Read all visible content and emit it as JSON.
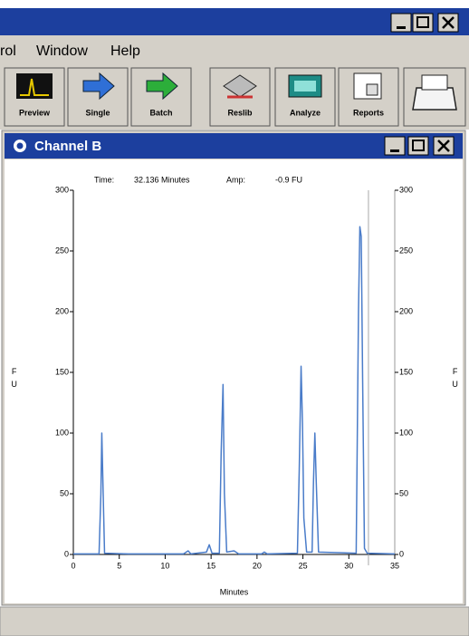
{
  "menu": [
    "rol",
    "Window",
    "Help"
  ],
  "toolbar": [
    "Preview",
    "Single",
    "Batch",
    "Reslib",
    "Analyze",
    "Reports"
  ],
  "window": {
    "title": "Channel B",
    "readout": [
      "Time:",
      "32.136 Minutes",
      "Amp:",
      "-0.9 FU"
    ]
  },
  "chart_data": {
    "type": "line",
    "x": [
      0,
      2.8,
      3.0,
      3.1,
      3.25,
      3.4,
      6,
      12,
      12.5,
      12.8,
      14.5,
      14.8,
      15.1,
      15.9,
      16.1,
      16.3,
      16.45,
      16.7,
      17.5,
      18,
      20.5,
      20.8,
      21.1,
      24.4,
      24.6,
      24.8,
      24.95,
      25.1,
      25.4,
      26.0,
      26.15,
      26.3,
      26.45,
      26.7,
      30.8,
      31.05,
      31.2,
      31.35,
      31.5,
      31.7,
      32.0,
      35
    ],
    "series": [
      {
        "name": "Channel B",
        "color": "#4a7cc9",
        "values": [
          0.5,
          0.5,
          50,
          100,
          50,
          1,
          0.5,
          0.5,
          3,
          0.5,
          2,
          8,
          1,
          1,
          85,
          140,
          50,
          2,
          3,
          0.5,
          0.5,
          2,
          0.5,
          1,
          70,
          155,
          108,
          30,
          2,
          2,
          60,
          100,
          60,
          2,
          1,
          200,
          270,
          262,
          145,
          5,
          1,
          0.5
        ]
      }
    ],
    "xlim": [
      0,
      35
    ],
    "xticks": [
      0,
      5,
      10,
      15,
      20,
      25,
      30,
      35
    ],
    "ylim": [
      0,
      300
    ],
    "yticks": [
      0,
      50,
      100,
      150,
      200,
      250,
      300
    ],
    "y2lim": [
      0,
      300
    ],
    "y2ticks": [
      0,
      50,
      100,
      150,
      200,
      250,
      300
    ],
    "xlabel": "Minutes",
    "ylabel": "FU",
    "cursor": 32.136
  }
}
